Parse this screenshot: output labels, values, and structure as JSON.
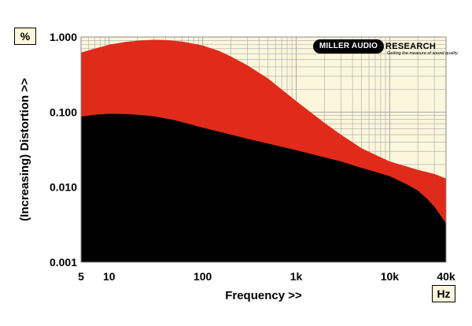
{
  "chart_data": {
    "type": "area",
    "xlabel": "Frequency >>",
    "ylabel": "(Increasing) Distortion >>",
    "x_unit": "Hz",
    "y_unit": "%",
    "x_scale": "log",
    "y_scale": "log",
    "xlim": [
      5,
      40000
    ],
    "ylim": [
      0.001,
      1.0
    ],
    "x_tick_labels": [
      "5",
      "10",
      "100",
      "1k",
      "10k",
      "40k"
    ],
    "x_tick_values": [
      5,
      10,
      100,
      1000,
      10000,
      40000
    ],
    "y_tick_labels": [
      "0.001",
      "0.010",
      "0.100",
      "1.000"
    ],
    "y_tick_values": [
      0.001,
      0.01,
      0.1,
      1.0
    ],
    "grid": true,
    "series": [
      {
        "color": "#e02a1a",
        "x": [
          5,
          7,
          10,
          15,
          20,
          30,
          40,
          60,
          100,
          150,
          200,
          300,
          500,
          700,
          1000,
          2000,
          3000,
          5000,
          7000,
          10000,
          20000,
          30000,
          40000
        ],
        "values": [
          0.62,
          0.7,
          0.79,
          0.86,
          0.89,
          0.92,
          0.91,
          0.87,
          0.77,
          0.65,
          0.55,
          0.42,
          0.28,
          0.2,
          0.14,
          0.072,
          0.05,
          0.033,
          0.027,
          0.022,
          0.017,
          0.015,
          0.013
        ]
      },
      {
        "color": "#000000",
        "x": [
          5,
          7,
          10,
          15,
          20,
          30,
          50,
          100,
          200,
          300,
          500,
          1000,
          2000,
          3000,
          5000,
          7000,
          10000,
          15000,
          20000,
          25000,
          30000,
          40000
        ],
        "values": [
          0.087,
          0.092,
          0.095,
          0.094,
          0.092,
          0.088,
          0.078,
          0.062,
          0.05,
          0.044,
          0.038,
          0.031,
          0.025,
          0.022,
          0.018,
          0.016,
          0.014,
          0.011,
          0.009,
          0.007,
          0.0055,
          0.0033
        ]
      }
    ]
  },
  "logo": {
    "brand": "MILLER AUDIO",
    "brand_rest": "RESEARCH",
    "tagline": "Getting the measure of sound quality"
  }
}
